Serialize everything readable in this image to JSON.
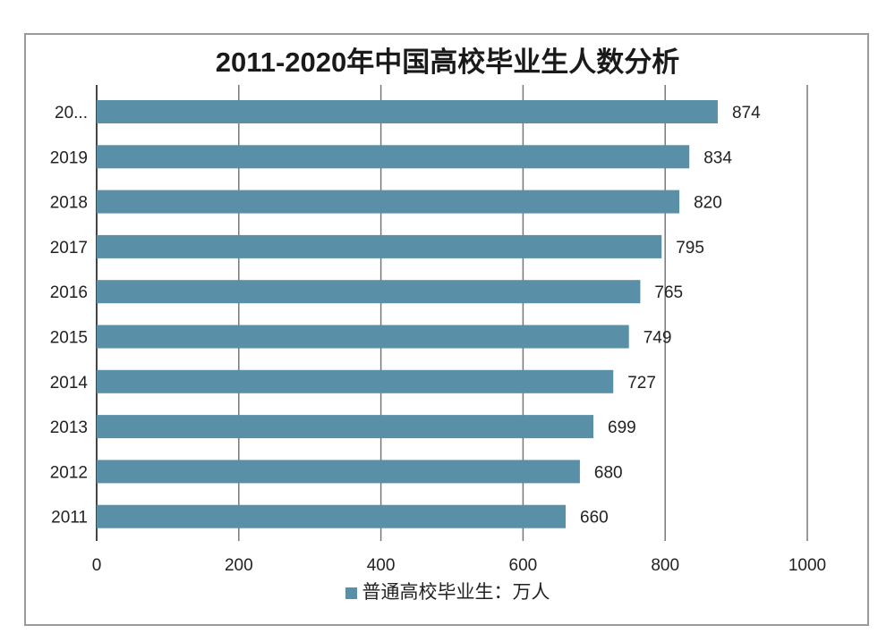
{
  "chart_data": {
    "type": "bar",
    "orientation": "horizontal",
    "title": "2011-2020年中国高校毕业生人数分析",
    "categories": [
      "20...",
      "2019",
      "2018",
      "2017",
      "2016",
      "2015",
      "2014",
      "2013",
      "2012",
      "2011"
    ],
    "series": [
      {
        "name": "普通高校毕业生：万人",
        "values": [
          874,
          834,
          820,
          795,
          765,
          749,
          727,
          699,
          680,
          660
        ]
      }
    ],
    "xlim": [
      0,
      1000
    ],
    "x_ticks": [
      "0",
      "200",
      "400",
      "600",
      "800",
      "1000"
    ],
    "grid": "vertical",
    "legend": "bottom",
    "bar_color": "#5a8fa8",
    "data_labels": true
  }
}
